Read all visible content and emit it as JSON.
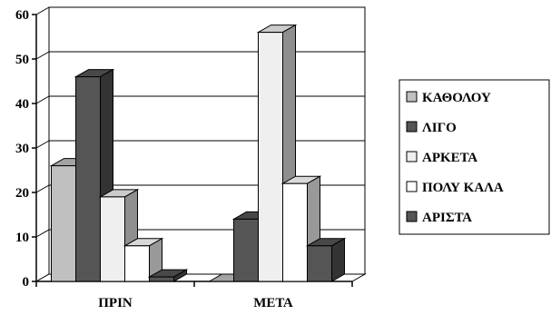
{
  "chart_data": {
    "type": "bar",
    "style": "3d",
    "categories": [
      "ΠΡΙΝ",
      "ΜΕΤΑ"
    ],
    "series": [
      {
        "name": "ΚΑΘΟΛΟΥ",
        "values": [
          26,
          0
        ],
        "color": "#c0c0c0"
      },
      {
        "name": "ΛΙΓΟ",
        "values": [
          46,
          14
        ],
        "color": "#555555"
      },
      {
        "name": "ΑΡΚΕΤΑ",
        "values": [
          19,
          56
        ],
        "color": "#efefef"
      },
      {
        "name": "ΠΟΛΥ ΚΑΛΑ",
        "values": [
          8,
          22
        ],
        "color": "#ffffff"
      },
      {
        "name": "ΑΡΙΣΤΑ",
        "values": [
          1,
          8
        ],
        "color": "#555555"
      }
    ],
    "yticks": [
      0,
      10,
      20,
      30,
      40,
      50,
      60
    ],
    "ylim": [
      0,
      60
    ],
    "grid": true,
    "legend_position": "right",
    "title": "",
    "xlabel": "",
    "ylabel": ""
  }
}
